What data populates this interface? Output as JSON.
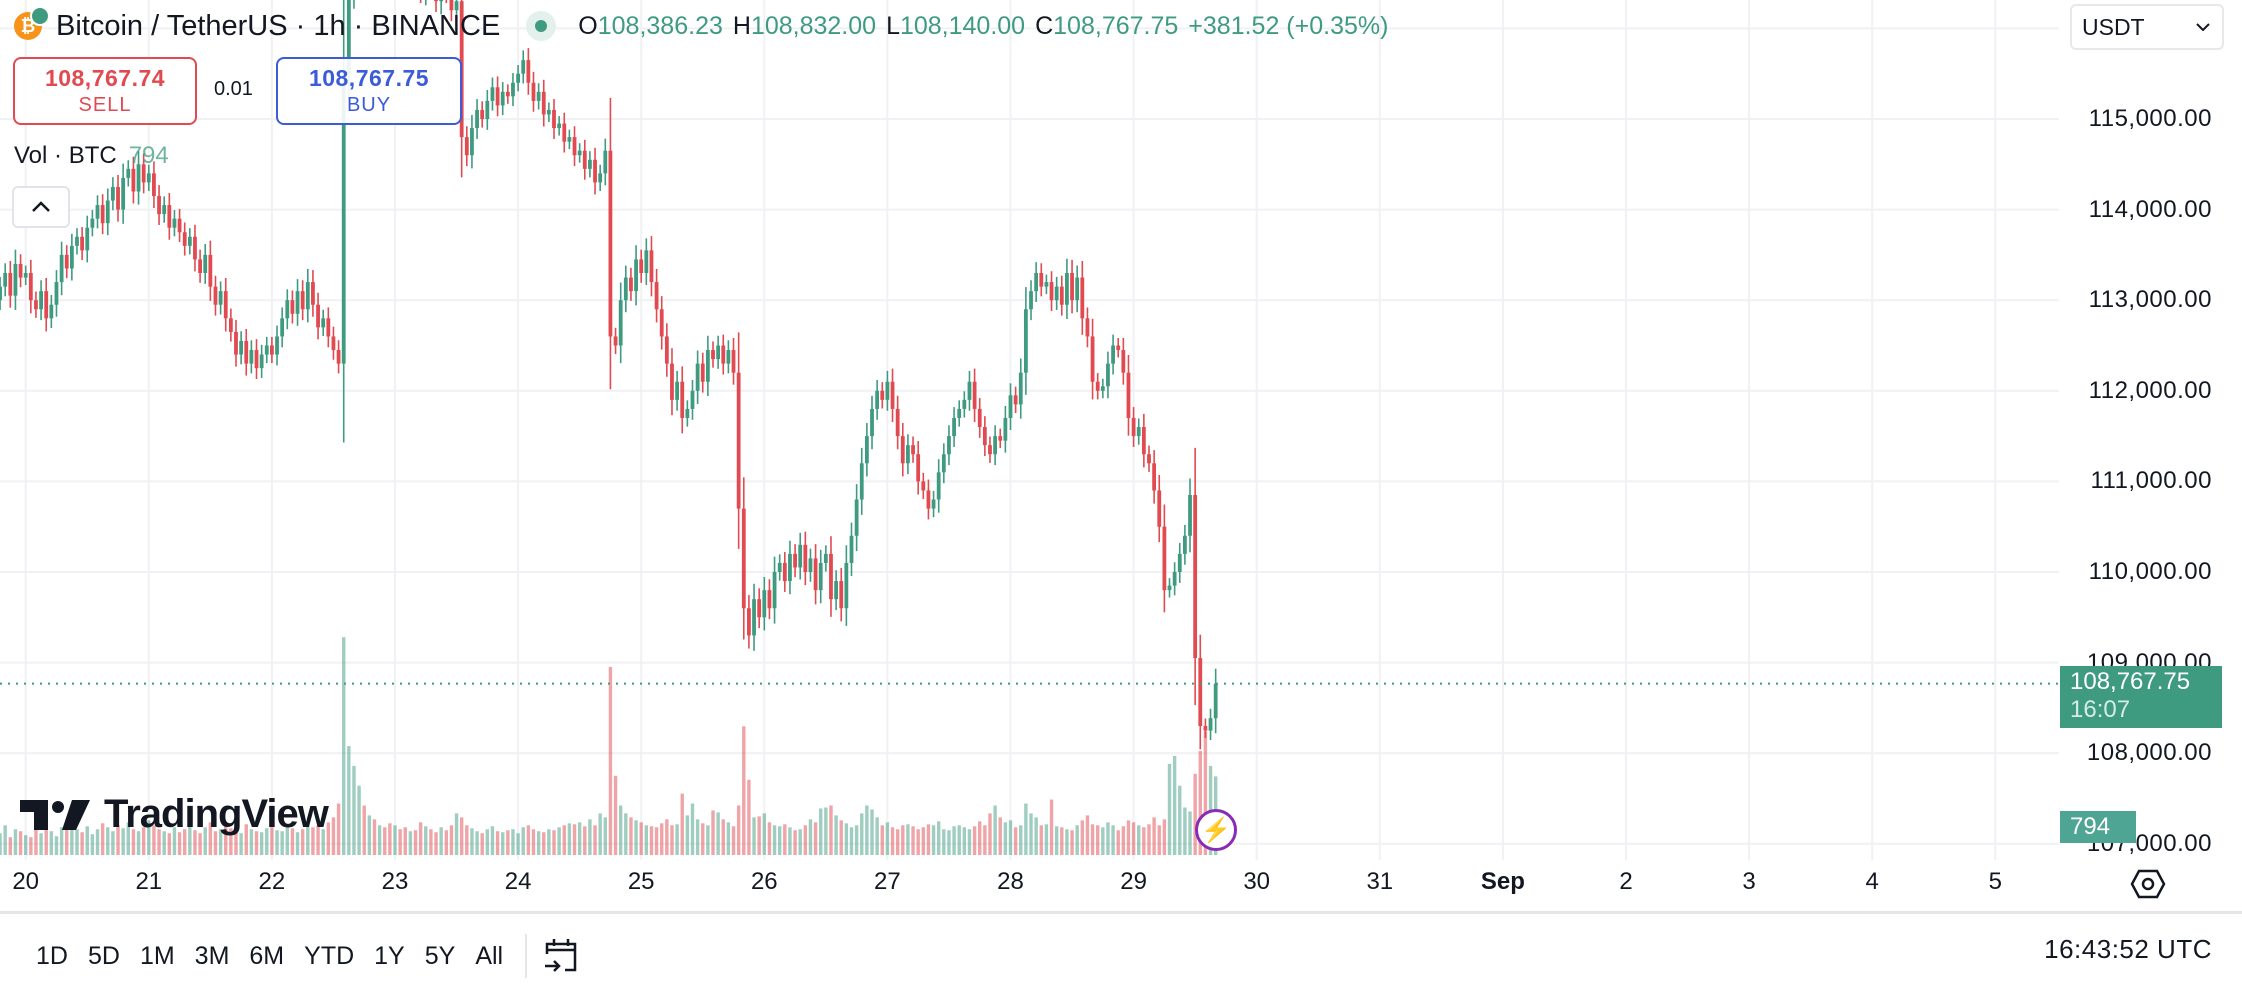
{
  "header": {
    "title": "Bitcoin / TetherUS · 1h · BINANCE",
    "ohlc": [
      {
        "key": "O",
        "value": "108,386.23"
      },
      {
        "key": "H",
        "value": "108,832.00"
      },
      {
        "key": "L",
        "value": "108,140.00"
      },
      {
        "key": "C",
        "value": "108,767.75"
      }
    ],
    "change": "+381.52 (+0.35%)",
    "market_status": "open"
  },
  "trade": {
    "sell_price": "108,767.74",
    "sell_label": "SELL",
    "quantity": "0.01",
    "buy_price": "108,767.75",
    "buy_label": "BUY"
  },
  "volume_legend": {
    "label": "Vol · BTC",
    "value": "794"
  },
  "currency": {
    "selected": "USDT"
  },
  "price_axis": [
    "115,000.00",
    "114,000.00",
    "113,000.00",
    "112,000.00",
    "111,000.00",
    "110,000.00",
    "109,000.00",
    "108,000.00",
    "107,000.00"
  ],
  "current_price": {
    "price": "108,767.75",
    "countdown": "16:07"
  },
  "volume_label": "794",
  "time_axis": [
    {
      "label": "20"
    },
    {
      "label": "21"
    },
    {
      "label": "22"
    },
    {
      "label": "23"
    },
    {
      "label": "24"
    },
    {
      "label": "25"
    },
    {
      "label": "26"
    },
    {
      "label": "27"
    },
    {
      "label": "28"
    },
    {
      "label": "29"
    },
    {
      "label": "30"
    },
    {
      "label": "31"
    },
    {
      "label": "Sep",
      "bold": true
    },
    {
      "label": "2"
    },
    {
      "label": "3"
    },
    {
      "label": "4"
    },
    {
      "label": "5"
    }
  ],
  "ranges": [
    "1D",
    "5D",
    "1M",
    "3M",
    "6M",
    "YTD",
    "1Y",
    "5Y",
    "All"
  ],
  "clock": "16:43:52 UTC",
  "branding": "TradingView",
  "colors": {
    "up": "#3f9b80",
    "down": "#e04a50",
    "buy": "#3b5bd9",
    "grid": "#f0f1f4"
  },
  "chart_data": {
    "type": "candlestick",
    "interval": "1h",
    "first_candle": "Aug 19 19:00",
    "ylim": [
      107000,
      116300
    ],
    "closes": [
      113150,
      113300,
      113050,
      113400,
      113250,
      113300,
      113000,
      112900,
      113100,
      112800,
      112950,
      113200,
      113500,
      113350,
      113600,
      113700,
      113550,
      113800,
      113900,
      114050,
      113850,
      114100,
      114250,
      114000,
      114350,
      114450,
      114200,
      114500,
      114300,
      114400,
      114150,
      113950,
      114050,
      113800,
      113900,
      113750,
      113600,
      113700,
      113450,
      113300,
      113500,
      113150,
      112950,
      113100,
      112800,
      112650,
      112400,
      112550,
      112300,
      112450,
      112250,
      112400,
      112500,
      112400,
      112600,
      112800,
      113000,
      112850,
      113100,
      112900,
      113200,
      112950,
      112700,
      112800,
      112600,
      112450,
      112300,
      115500,
      116350,
      116600,
      116800,
      116500,
      116900,
      116700,
      117000,
      116800,
      116600,
      116900,
      116700,
      116500,
      116800,
      116600,
      116400,
      116700,
      116500,
      116300,
      116600,
      116400,
      116200,
      116300,
      114800,
      114600,
      114900,
      115100,
      115000,
      115200,
      115350,
      115150,
      115300,
      115250,
      115400,
      115500,
      115650,
      115400,
      115200,
      115300,
      115050,
      115100,
      114900,
      114950,
      114750,
      114800,
      114600,
      114650,
      114450,
      114550,
      114300,
      114400,
      114650,
      112600,
      112500,
      113000,
      113250,
      113100,
      113450,
      113300,
      113550,
      113200,
      112900,
      112600,
      112300,
      111900,
      112100,
      111700,
      111800,
      112000,
      112300,
      112100,
      112450,
      112350,
      112500,
      112300,
      112450,
      112200,
      110700,
      109600,
      109300,
      109700,
      109500,
      109800,
      109600,
      110000,
      110100,
      109900,
      110200,
      110050,
      110300,
      110000,
      110150,
      109800,
      110100,
      110200,
      109700,
      109900,
      109600,
      110100,
      110400,
      110800,
      111200,
      111500,
      111800,
      112000,
      111900,
      112100,
      111800,
      111500,
      111200,
      111400,
      111300,
      111000,
      110900,
      110700,
      110800,
      111100,
      111300,
      111500,
      111700,
      111800,
      111900,
      112100,
      111800,
      111600,
      111400,
      111300,
      111500,
      111450,
      111700,
      111950,
      111850,
      112200,
      112900,
      113100,
      113300,
      113150,
      113200,
      113000,
      113150,
      112950,
      113300,
      113000,
      113250,
      112800,
      112600,
      112100,
      112000,
      112050,
      112300,
      112500,
      112450,
      112200,
      111700,
      111500,
      111600,
      111300,
      111200,
      110900,
      110500,
      109800,
      109850,
      110000,
      110200,
      110400,
      110850,
      109050,
      108300,
      108250,
      108386.23,
      108767.75
    ],
    "volumes": [
      220,
      300,
      180,
      260,
      240,
      200,
      180,
      260,
      220,
      310,
      240,
      190,
      280,
      350,
      300,
      260,
      230,
      290,
      210,
      260,
      320,
      280,
      240,
      300,
      270,
      330,
      260,
      240,
      280,
      350,
      300,
      260,
      240,
      220,
      280,
      230,
      260,
      300,
      250,
      220,
      280,
      330,
      240,
      260,
      300,
      270,
      250,
      220,
      310,
      260,
      240,
      230,
      270,
      280,
      250,
      240,
      300,
      270,
      230,
      260,
      320,
      280,
      300,
      260,
      330,
      380,
      520,
      2200,
      1100,
      900,
      700,
      500,
      400,
      360,
      300,
      280,
      320,
      300,
      260,
      280,
      240,
      250,
      330,
      290,
      260,
      230,
      280,
      250,
      300,
      420,
      380,
      300,
      270,
      240,
      220,
      260,
      290,
      240,
      230,
      250,
      260,
      220,
      280,
      300,
      260,
      240,
      230,
      260,
      250,
      280,
      300,
      320,
      310,
      330,
      290,
      360,
      300,
      420,
      380,
      1900,
      800,
      500,
      420,
      380,
      350,
      330,
      300,
      290,
      280,
      320,
      360,
      300,
      310,
      620,
      400,
      520,
      360,
      320,
      300,
      450,
      430,
      360,
      330,
      290,
      500,
      1300,
      760,
      380,
      390,
      420,
      330,
      300,
      290,
      310,
      280,
      250,
      260,
      300,
      360,
      330,
      470,
      480,
      500,
      400,
      350,
      320,
      280,
      300,
      420,
      500,
      460,
      380,
      300,
      330,
      280,
      260,
      300,
      310,
      290,
      260,
      280,
      310,
      300,
      340,
      260,
      250,
      290,
      300,
      280,
      260,
      290,
      340,
      300,
      420,
      500,
      380,
      330,
      350,
      280,
      300,
      520,
      420,
      380,
      300,
      310,
      560,
      290,
      280,
      260,
      250,
      300,
      350,
      400,
      310,
      300,
      280,
      330,
      300,
      250,
      290,
      350,
      330,
      300,
      280,
      310,
      380,
      300,
      360,
      920,
      1000,
      700,
      480,
      440,
      820,
      1050,
      1250,
      900,
      794
    ]
  }
}
